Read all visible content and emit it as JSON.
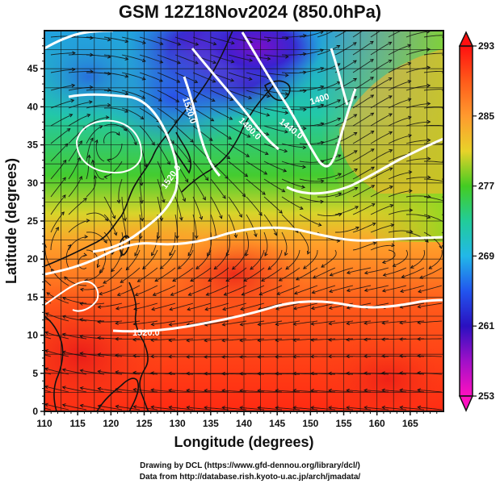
{
  "title": "GSM 12Z18Nov2024 (850.0hPa)",
  "credits": {
    "line1": "Drawing by DCL (https://www.gfd-dennou.org/library/dcl/)",
    "line2": "Data from http://database.rish.kyoto-u.ac.jp/arch/jmadata/"
  },
  "axes": {
    "xlabel": "Longitude (degrees)",
    "ylabel": "Latitude  (degrees)",
    "xlim": [
      110,
      170
    ],
    "ylim": [
      0,
      50
    ],
    "xticks": [
      "110",
      "115",
      "120",
      "125",
      "130",
      "135",
      "140",
      "145",
      "150",
      "155",
      "160",
      "165"
    ],
    "yticks": [
      "0",
      "5",
      "10",
      "15",
      "20",
      "25",
      "30",
      "35",
      "40",
      "45"
    ]
  },
  "colorbar": {
    "ticks": [
      "293",
      "285",
      "277",
      "269",
      "261",
      "253"
    ],
    "stops": [
      "#ff1010",
      "#ff5a1a",
      "#ff9a2e",
      "#e8d22a",
      "#44cc22",
      "#22cc99",
      "#22b8e8",
      "#2255ee",
      "#2a10c0",
      "#a010c8",
      "#ff10c0"
    ]
  },
  "contours": {
    "labels": [
      "1520.0",
      "1480.0",
      "1440.0",
      "1400",
      "1520.0",
      "1520.0"
    ]
  }
}
